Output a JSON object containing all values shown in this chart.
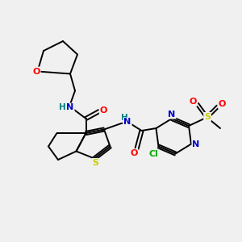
{
  "bg_color": "#f0f0f0",
  "bond_color": "#000000",
  "atom_colors": {
    "O": "#ff0000",
    "N": "#0000cc",
    "S": "#cccc00",
    "Cl": "#00aa00",
    "H": "#008080"
  }
}
